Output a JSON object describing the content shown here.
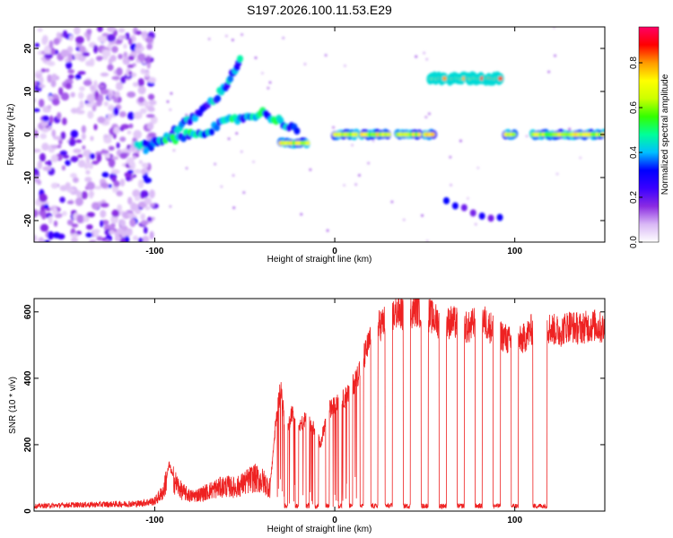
{
  "chart_data": [
    {
      "type": "heatmap",
      "title": "S197.2026.100.11.53.E29",
      "xlabel": "Height of straight line (km)",
      "ylabel": "Frequency (Hz)",
      "xlim": [
        -167,
        150
      ],
      "ylim": [
        -25,
        25
      ],
      "xticks": [
        -100,
        0,
        100
      ],
      "xtick_labels": [
        "-100",
        "0",
        "100"
      ],
      "yticks": [
        -20,
        -10,
        0,
        10,
        20
      ],
      "ytick_labels": [
        "-20",
        "-10",
        "0",
        "10",
        "20"
      ],
      "colorbar": {
        "label": "Normalized spectral amplitude",
        "range": [
          0,
          0.96
        ],
        "ticks": [
          0,
          0.2,
          0.4,
          0.6,
          0.8
        ],
        "tick_labels": [
          "0.0",
          "0.2",
          "0.4",
          "0.6",
          "0.8"
        ],
        "colors": [
          "#ffffff",
          "#d9b8f5",
          "#8a2be2",
          "#3a00ff",
          "#0000ff",
          "#00bfff",
          "#00ff99",
          "#33ff00",
          "#ccff00",
          "#ffff00",
          "#ff9900",
          "#ff0000",
          "#ff0066"
        ]
      },
      "features": [
        {
          "name": "rising tone",
          "x": [
            -105,
            -95,
            -85,
            -75,
            -65,
            -58,
            -52
          ],
          "y": [
            -3,
            -1,
            2,
            5,
            9,
            13,
            18
          ],
          "amp": 0.45
        },
        {
          "name": "lower branch",
          "x": [
            -110,
            -100,
            -90,
            -80,
            -70,
            -60,
            -50,
            -40,
            -30,
            -20
          ],
          "y": [
            -3,
            -2,
            -1,
            0,
            1,
            3,
            4,
            5,
            3,
            1
          ],
          "amp": 0.5
        },
        {
          "name": "carrier segments",
          "x_start": [
            -30,
            0,
            15,
            35,
            55,
            95,
            110
          ],
          "x_end": [
            -15,
            12,
            30,
            48,
            50,
            100,
            150
          ],
          "y": [
            -2,
            0,
            0,
            0,
            0,
            0,
            0
          ],
          "amp": 0.8
        },
        {
          "name": "upper tone blocks",
          "x_centers": [
            57,
            68,
            78,
            88
          ],
          "y": 13,
          "amp": 0.9
        },
        {
          "name": "lower ghost",
          "x": [
            62,
            95
          ],
          "y": [
            -16,
            -20
          ],
          "amp": 0.35
        }
      ]
    },
    {
      "type": "line",
      "xlabel": "Height of straight line (km)",
      "ylabel": "SNR (10 * v/v)",
      "xlim": [
        -167,
        150
      ],
      "ylim": [
        0,
        640
      ],
      "xticks": [
        -100,
        0,
        100
      ],
      "xtick_labels": [
        "-100",
        "0",
        "100"
      ],
      "yticks": [
        0,
        200,
        400,
        600
      ],
      "ytick_labels": [
        "0",
        "200",
        "400",
        "600"
      ],
      "line_color": "#ee2222",
      "series": [
        {
          "name": "SNR",
          "x": [
            -167,
            -150,
            -130,
            -110,
            -100,
            -95,
            -92,
            -89,
            -85,
            -80,
            -75,
            -70,
            -65,
            -60,
            -55,
            -50,
            -45,
            -40,
            -36,
            -33,
            -30,
            -27,
            -24,
            -20,
            -16,
            -12,
            -8,
            -4,
            0,
            4,
            8,
            12,
            16,
            20,
            25,
            30,
            35,
            40,
            45,
            50,
            55,
            60,
            65,
            70,
            75,
            80,
            85,
            90,
            95,
            100,
            105,
            110,
            115,
            120,
            125,
            130,
            135,
            140,
            145,
            150
          ],
          "y": [
            15,
            18,
            20,
            22,
            30,
            60,
            140,
            90,
            60,
            45,
            50,
            60,
            70,
            75,
            70,
            85,
            100,
            90,
            70,
            250,
            380,
            220,
            300,
            250,
            280,
            250,
            200,
            300,
            320,
            330,
            360,
            400,
            460,
            520,
            560,
            580,
            600,
            590,
            610,
            600,
            580,
            560,
            570,
            560,
            550,
            590,
            560,
            540,
            520,
            500,
            520,
            550,
            560,
            550,
            540,
            560,
            550,
            555,
            560,
            545
          ]
        }
      ],
      "dropout_intervals": [
        [
          -28,
          -26
        ],
        [
          -22,
          -20
        ],
        [
          -16,
          -14
        ],
        [
          -11,
          -9
        ],
        [
          -5,
          -3
        ],
        [
          2,
          4
        ],
        [
          8,
          10
        ],
        [
          14,
          16
        ],
        [
          20,
          24
        ],
        [
          28,
          32
        ],
        [
          38,
          42
        ],
        [
          48,
          52
        ],
        [
          58,
          62
        ],
        [
          68,
          72
        ],
        [
          78,
          82
        ],
        [
          88,
          92
        ],
        [
          98,
          102
        ],
        [
          110,
          118
        ]
      ]
    }
  ]
}
